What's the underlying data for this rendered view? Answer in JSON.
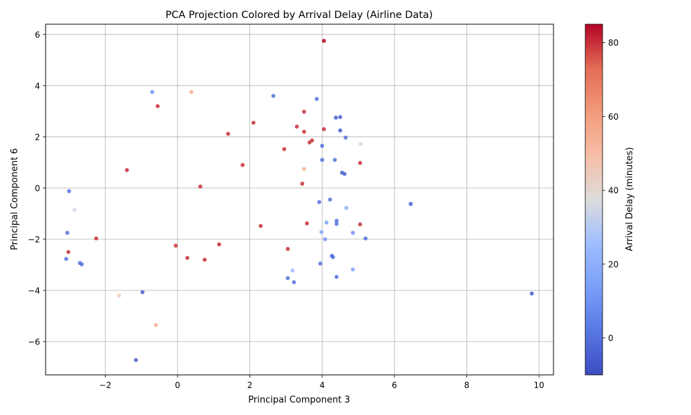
{
  "chart_data": {
    "type": "scatter",
    "title": "PCA Projection Colored by Arrival Delay (Airline Data)",
    "xlabel": "Principal Component 3",
    "ylabel": "Principal Component 6",
    "xlim": [
      -3.65,
      10.4
    ],
    "ylim": [
      -7.3,
      6.4
    ],
    "x_ticks": [
      -2,
      0,
      2,
      4,
      6,
      8,
      10
    ],
    "y_ticks": [
      -6,
      -4,
      -2,
      0,
      2,
      4,
      6
    ],
    "x_tick_labels": [
      "−2",
      "0",
      "2",
      "4",
      "6",
      "8",
      "10"
    ],
    "y_tick_labels": [
      "−6",
      "−4",
      "−2",
      "0",
      "2",
      "4",
      "6"
    ],
    "grid": true,
    "colormap": "coolwarm",
    "colorbar": {
      "label": "Arrival Delay (minutes)",
      "range": [
        -10,
        85
      ],
      "ticks": [
        0,
        20,
        40,
        60,
        80
      ],
      "tick_labels": [
        "0",
        "20",
        "40",
        "60",
        "80"
      ]
    },
    "series": [
      {
        "points": [
          {
            "x": 4.05,
            "y": 5.75,
            "c": 85
          },
          {
            "x": 9.8,
            "y": -4.12,
            "c": -5
          },
          {
            "x": 6.45,
            "y": -0.62,
            "c": -5
          },
          {
            "x": -1.15,
            "y": -6.72,
            "c": -5
          },
          {
            "x": -0.6,
            "y": -5.35,
            "c": 55
          },
          {
            "x": -1.62,
            "y": -4.2,
            "c": 45
          },
          {
            "x": -0.97,
            "y": -4.07,
            "c": -5
          },
          {
            "x": 5.2,
            "y": -1.97,
            "c": 0
          },
          {
            "x": 5.07,
            "y": 1.72,
            "c": 35
          },
          {
            "x": 5.05,
            "y": 0.98,
            "c": 80
          },
          {
            "x": 5.05,
            "y": -1.42,
            "c": 80
          },
          {
            "x": 4.85,
            "y": -3.18,
            "c": 15
          },
          {
            "x": 4.85,
            "y": -1.75,
            "c": 10
          },
          {
            "x": 4.65,
            "y": 1.97,
            "c": 0
          },
          {
            "x": 4.67,
            "y": -0.78,
            "c": 20
          },
          {
            "x": 4.5,
            "y": 2.77,
            "c": -5
          },
          {
            "x": 4.5,
            "y": 2.25,
            "c": -5
          },
          {
            "x": 4.55,
            "y": 0.6,
            "c": -5
          },
          {
            "x": 4.62,
            "y": 0.55,
            "c": -5
          },
          {
            "x": 4.4,
            "y": -3.47,
            "c": 0
          },
          {
            "x": 4.4,
            "y": -1.28,
            "c": 0
          },
          {
            "x": 4.4,
            "y": -1.4,
            "c": 0
          },
          {
            "x": 4.35,
            "y": 1.1,
            "c": 0
          },
          {
            "x": 4.38,
            "y": 2.75,
            "c": -5
          },
          {
            "x": 4.27,
            "y": -2.65,
            "c": -5
          },
          {
            "x": 4.3,
            "y": -2.7,
            "c": 0
          },
          {
            "x": 4.22,
            "y": -0.45,
            "c": 0
          },
          {
            "x": 4.12,
            "y": -1.35,
            "c": 15
          },
          {
            "x": 4.05,
            "y": 2.3,
            "c": 80
          },
          {
            "x": 3.95,
            "y": -2.95,
            "c": 0
          },
          {
            "x": 3.98,
            "y": -1.72,
            "c": 15
          },
          {
            "x": 3.92,
            "y": -0.55,
            "c": 0
          },
          {
            "x": 3.85,
            "y": 3.48,
            "c": 0
          },
          {
            "x": 4.0,
            "y": 1.65,
            "c": 0
          },
          {
            "x": 4.0,
            "y": 1.1,
            "c": 0
          },
          {
            "x": 4.08,
            "y": -2.0,
            "c": 10
          },
          {
            "x": 3.72,
            "y": 1.86,
            "c": 80
          },
          {
            "x": 3.65,
            "y": 1.78,
            "c": 80
          },
          {
            "x": 3.5,
            "y": 2.98,
            "c": 80
          },
          {
            "x": 3.5,
            "y": 2.2,
            "c": 80
          },
          {
            "x": 3.5,
            "y": 0.75,
            "c": 55
          },
          {
            "x": 3.45,
            "y": 0.17,
            "c": 80
          },
          {
            "x": 3.58,
            "y": -1.38,
            "c": 80
          },
          {
            "x": 3.3,
            "y": 2.4,
            "c": 80
          },
          {
            "x": 3.18,
            "y": -3.22,
            "c": 25
          },
          {
            "x": 3.22,
            "y": -3.68,
            "c": 0
          },
          {
            "x": 3.05,
            "y": -3.52,
            "c": 0
          },
          {
            "x": 3.05,
            "y": -2.38,
            "c": 80
          },
          {
            "x": 2.65,
            "y": 3.6,
            "c": 0
          },
          {
            "x": -3.02,
            "y": -2.5,
            "c": 80
          },
          {
            "x": -2.85,
            "y": -0.85,
            "c": 35
          },
          {
            "x": -3.05,
            "y": -1.75,
            "c": 0
          },
          {
            "x": -3.08,
            "y": -2.77,
            "c": 0
          },
          {
            "x": -3.0,
            "y": -0.12,
            "c": 0
          },
          {
            "x": -2.7,
            "y": -2.93,
            "c": 0
          },
          {
            "x": -2.65,
            "y": -2.98,
            "c": 0
          },
          {
            "x": -2.25,
            "y": -1.97,
            "c": 80
          },
          {
            "x": 0.38,
            "y": 3.75,
            "c": 55
          },
          {
            "x": -0.7,
            "y": 3.75,
            "c": 10
          },
          {
            "x": 0.63,
            "y": 0.06,
            "c": 80
          },
          {
            "x": -0.05,
            "y": -2.25,
            "c": 80
          },
          {
            "x": 0.27,
            "y": -2.73,
            "c": 80
          },
          {
            "x": 1.15,
            "y": -2.2,
            "c": 80
          },
          {
            "x": 2.1,
            "y": 2.55,
            "c": 80
          },
          {
            "x": 2.3,
            "y": -1.48,
            "c": 80
          },
          {
            "x": 2.95,
            "y": 1.52,
            "c": 80
          },
          {
            "x": 1.4,
            "y": 2.12,
            "c": 80
          },
          {
            "x": -0.55,
            "y": 3.2,
            "c": 80
          },
          {
            "x": -1.4,
            "y": 0.7,
            "c": 80
          },
          {
            "x": 0.75,
            "y": -2.8,
            "c": 80
          },
          {
            "x": 1.8,
            "y": 0.9,
            "c": 80
          }
        ]
      }
    ]
  }
}
